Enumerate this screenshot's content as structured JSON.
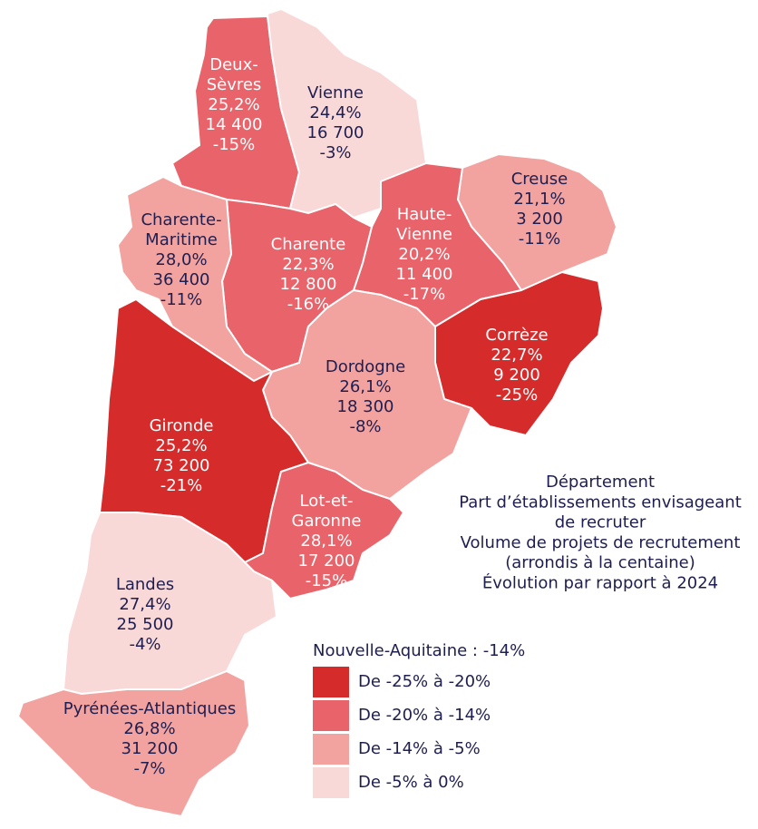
{
  "classes": [
    {
      "label": "De -25% à -20%",
      "color": "#d62b2b"
    },
    {
      "label": "De -20% à -14%",
      "color": "#e8636a"
    },
    {
      "label": "De -14% à -5%",
      "color": "#f2a3a0"
    },
    {
      "label": "De -5% à 0%",
      "color": "#f9d8d8"
    }
  ],
  "region_total": "Nouvelle-Aquitaine : -14%",
  "explanation": [
    "Département",
    "Part d’établissements envisageant",
    "de recruter",
    "Volume de projets de recrutement",
    "(arrondis à la centaine)",
    "Évolution par rapport à 2024"
  ],
  "departments": [
    {
      "name_lines": [
        "Deux-",
        "Sèvres"
      ],
      "share": "25,2%",
      "volume": "14 400",
      "change": "-15%",
      "class": 1
    },
    {
      "name_lines": [
        "Vienne"
      ],
      "share": "24,4%",
      "volume": "16 700",
      "change": "-3%",
      "class": 3
    },
    {
      "name_lines": [
        "Creuse"
      ],
      "share": "21,1%",
      "volume": "3 200",
      "change": "-11%",
      "class": 2
    },
    {
      "name_lines": [
        "Haute-",
        "Vienne"
      ],
      "share": "20,2%",
      "volume": "11 400",
      "change": "-17%",
      "class": 1
    },
    {
      "name_lines": [
        "Corrèze"
      ],
      "share": "22,7%",
      "volume": "9 200",
      "change": "-25%",
      "class": 0
    },
    {
      "name_lines": [
        "Charente"
      ],
      "share": "22,3%",
      "volume": "12 800",
      "change": "-16%",
      "class": 1
    },
    {
      "name_lines": [
        "Charente-",
        "Maritime"
      ],
      "share": "28,0%",
      "volume": "36 400",
      "change": "-11%",
      "class": 2
    },
    {
      "name_lines": [
        "Dordogne"
      ],
      "share": "26,1%",
      "volume": "18 300",
      "change": "-8%",
      "class": 2
    },
    {
      "name_lines": [
        "Gironde"
      ],
      "share": "25,2%",
      "volume": "73 200",
      "change": "-21%",
      "class": 0
    },
    {
      "name_lines": [
        "Lot-et-",
        "Garonne"
      ],
      "share": "28,1%",
      "volume": "17 200",
      "change": "-15%",
      "class": 1
    },
    {
      "name_lines": [
        "Landes"
      ],
      "share": "27,4%",
      "volume": "25 500",
      "change": "-4%",
      "class": 3
    },
    {
      "name_lines": [
        "Pyrénées-Atlantiques"
      ],
      "share": "26,8%",
      "volume": "31 200",
      "change": "-7%",
      "class": 2
    }
  ]
}
